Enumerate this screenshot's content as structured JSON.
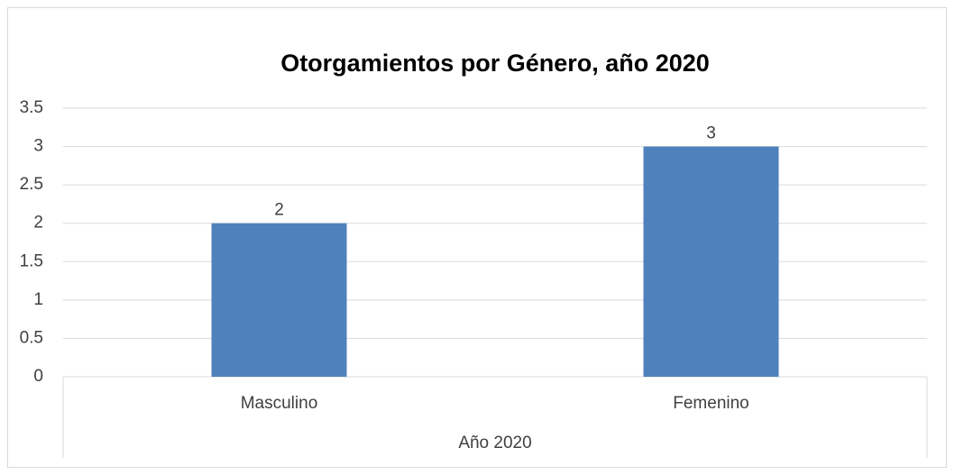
{
  "chart_data": {
    "type": "bar",
    "title": "Otorgamientos por Género, año 2020",
    "categories": [
      "Masculino",
      "Femenino"
    ],
    "values": [
      2,
      3
    ],
    "color": "#4f81bd",
    "xlabel": "Año 2020",
    "ylim": [
      0,
      3.5
    ],
    "yticks": [
      0,
      0.5,
      1,
      1.5,
      2,
      2.5,
      3,
      3.5
    ],
    "grid": true
  }
}
